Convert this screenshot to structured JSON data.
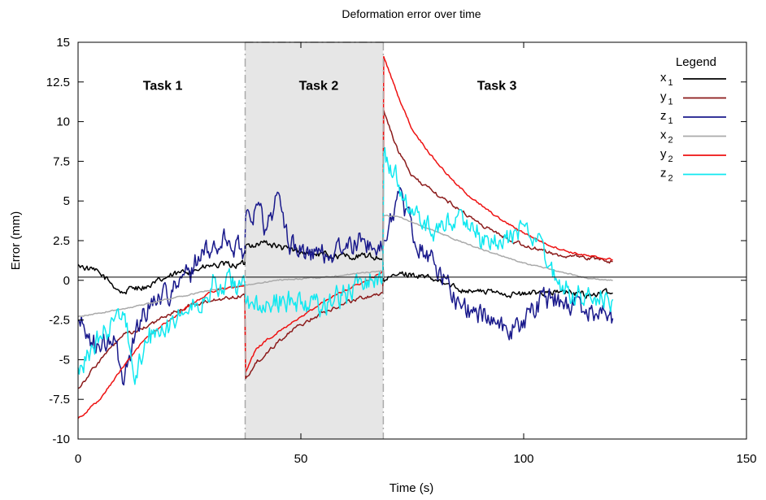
{
  "chart_data": {
    "type": "line",
    "title": "Deformation error over time",
    "xlabel": "Time (s)",
    "ylabel": "Error (mm)",
    "xlim": [
      0,
      150
    ],
    "ylim": [
      -10,
      15
    ],
    "xticks": [
      0,
      50,
      100,
      150
    ],
    "xtick_labels": [
      "0",
      "50",
      "100",
      "150"
    ],
    "yticks": [
      -10,
      -7.5,
      -5,
      -2.5,
      0,
      2.5,
      5,
      7.5,
      10,
      12.5,
      15
    ],
    "ytick_labels": [
      "-10",
      "-7.5",
      "-5",
      "-2.5",
      "0",
      "2.5",
      "5",
      "7.5",
      "10",
      "12.5",
      "15"
    ],
    "grid": false,
    "zero_line": 0.2,
    "shaded_region": [
      37.5,
      68.5
    ],
    "shaded_color": "#e6e6e6",
    "task_labels": [
      {
        "text": "Task 1",
        "x": 19,
        "y": 12.3
      },
      {
        "text": "Task 2",
        "x": 54,
        "y": 12.3
      },
      {
        "text": "Task 3",
        "x": 94,
        "y": 12.3
      }
    ],
    "legend": {
      "title": "Legend",
      "placement": "top-right"
    },
    "series": [
      {
        "name": "x1",
        "base": "x",
        "sub": "1",
        "color": "#000000",
        "noise": 0.25,
        "points": [
          [
            0,
            1.0
          ],
          [
            5,
            0.4
          ],
          [
            10,
            -0.8
          ],
          [
            13,
            -0.4
          ],
          [
            16,
            -0.4
          ],
          [
            20,
            0.2
          ],
          [
            25,
            0.6
          ],
          [
            30,
            0.9
          ],
          [
            37.4,
            1.0
          ],
          [
            37.6,
            2.2
          ],
          [
            42,
            2.4
          ],
          [
            46,
            2.0
          ],
          [
            50,
            1.8
          ],
          [
            55,
            1.6
          ],
          [
            60,
            1.5
          ],
          [
            65,
            1.5
          ],
          [
            68.4,
            1.4
          ],
          [
            68.6,
            -0.1
          ],
          [
            72,
            0.4
          ],
          [
            75,
            0.4
          ],
          [
            80,
            0
          ],
          [
            85,
            -0.5
          ],
          [
            90,
            -0.7
          ],
          [
            95,
            -0.8
          ],
          [
            100,
            -0.9
          ],
          [
            105,
            -0.7
          ],
          [
            110,
            -0.8
          ],
          [
            115,
            -0.9
          ],
          [
            120,
            -0.8
          ]
        ]
      },
      {
        "name": "y1",
        "base": "y",
        "sub": "1",
        "color": "#8b1a1a",
        "noise": 0.15,
        "points": [
          [
            0,
            -6.8
          ],
          [
            5,
            -5
          ],
          [
            10,
            -3.5
          ],
          [
            15,
            -3
          ],
          [
            20,
            -2.2
          ],
          [
            25,
            -1.6
          ],
          [
            30,
            -1.3
          ],
          [
            37.4,
            -0.9
          ],
          [
            37.6,
            -6.2
          ],
          [
            40,
            -5.2
          ],
          [
            45,
            -3.8
          ],
          [
            50,
            -2.8
          ],
          [
            55,
            -2
          ],
          [
            60,
            -1.4
          ],
          [
            65,
            -1
          ],
          [
            68.4,
            -0.8
          ],
          [
            68.6,
            10.7
          ],
          [
            72,
            8
          ],
          [
            75,
            6.6
          ],
          [
            80,
            5.5
          ],
          [
            85,
            4.6
          ],
          [
            90,
            3.6
          ],
          [
            95,
            2.8
          ],
          [
            100,
            2.2
          ],
          [
            105,
            1.8
          ],
          [
            110,
            1.5
          ],
          [
            115,
            1.4
          ],
          [
            120,
            1.2
          ]
        ]
      },
      {
        "name": "z1",
        "base": "z",
        "sub": "1",
        "color": "#1a1a8c",
        "noise": 0.9,
        "points": [
          [
            0,
            -2.5
          ],
          [
            5,
            -4.5
          ],
          [
            8,
            -3.5
          ],
          [
            10,
            -6.5
          ],
          [
            13,
            -3
          ],
          [
            17,
            -1
          ],
          [
            22,
            -0.5
          ],
          [
            25,
            0.5
          ],
          [
            27,
            1.5
          ],
          [
            30,
            1.8
          ],
          [
            33,
            2.6
          ],
          [
            37.4,
            1.8
          ],
          [
            37.6,
            4
          ],
          [
            40,
            4.8
          ],
          [
            42,
            3.2
          ],
          [
            45,
            5.5
          ],
          [
            47,
            2.5
          ],
          [
            50,
            1.8
          ],
          [
            55,
            1.6
          ],
          [
            60,
            2
          ],
          [
            65,
            2.5
          ],
          [
            68.4,
            1.8
          ],
          [
            68.6,
            2.5
          ],
          [
            72,
            5.5
          ],
          [
            75,
            3
          ],
          [
            80,
            1
          ],
          [
            85,
            -1.2
          ],
          [
            88,
            -2
          ],
          [
            92,
            -2.2
          ],
          [
            97,
            -3.2
          ],
          [
            100,
            -2.5
          ],
          [
            105,
            -1
          ],
          [
            110,
            -1.5
          ],
          [
            115,
            -1.8
          ],
          [
            120,
            -2.4
          ]
        ]
      },
      {
        "name": "x2",
        "base": "x",
        "sub": "2",
        "color": "#aaaaaa",
        "noise": 0.05,
        "points": [
          [
            0,
            -2.3
          ],
          [
            10,
            -1.8
          ],
          [
            20,
            -1.2
          ],
          [
            30,
            -0.6
          ],
          [
            37.4,
            -0.3
          ],
          [
            45,
            0
          ],
          [
            55,
            0.2
          ],
          [
            68.4,
            0.6
          ],
          [
            68.6,
            4.1
          ],
          [
            72,
            4
          ],
          [
            80,
            3.1
          ],
          [
            90,
            2
          ],
          [
            100,
            1.1
          ],
          [
            110,
            0.4
          ],
          [
            115,
            0.1
          ],
          [
            120,
            0
          ]
        ]
      },
      {
        "name": "y2",
        "base": "y",
        "sub": "2",
        "color": "#ee1111",
        "noise": 0.08,
        "points": [
          [
            0,
            -8.7
          ],
          [
            5,
            -7.5
          ],
          [
            10,
            -5.5
          ],
          [
            15,
            -3.7
          ],
          [
            20,
            -2.6
          ],
          [
            25,
            -1.6
          ],
          [
            30,
            -0.7
          ],
          [
            37.4,
            -0.3
          ],
          [
            37.6,
            -5.8
          ],
          [
            40,
            -4.3
          ],
          [
            45,
            -3.2
          ],
          [
            50,
            -2.3
          ],
          [
            55,
            -1.4
          ],
          [
            60,
            -0.6
          ],
          [
            65,
            0
          ],
          [
            68.4,
            0.5
          ],
          [
            68.6,
            14.1
          ],
          [
            72,
            11.5
          ],
          [
            75,
            9.5
          ],
          [
            80,
            7.6
          ],
          [
            85,
            6
          ],
          [
            90,
            4.8
          ],
          [
            95,
            3.8
          ],
          [
            100,
            3
          ],
          [
            105,
            2.3
          ],
          [
            110,
            1.8
          ],
          [
            115,
            1.5
          ],
          [
            120,
            1.3
          ]
        ]
      },
      {
        "name": "z2",
        "base": "z",
        "sub": "2",
        "color": "#11e8f0",
        "noise": 0.9,
        "points": [
          [
            0,
            -5.5
          ],
          [
            5,
            -3.5
          ],
          [
            10,
            -2
          ],
          [
            13,
            -6
          ],
          [
            16,
            -3
          ],
          [
            20,
            -2.5
          ],
          [
            25,
            -1.8
          ],
          [
            30,
            -0.5
          ],
          [
            37.4,
            -0.2
          ],
          [
            37.6,
            -1.5
          ],
          [
            42,
            -2
          ],
          [
            46,
            -1
          ],
          [
            50,
            -1.5
          ],
          [
            55,
            -1.5
          ],
          [
            60,
            -0.8
          ],
          [
            65,
            0
          ],
          [
            68.4,
            0.5
          ],
          [
            68.6,
            8
          ],
          [
            72,
            6
          ],
          [
            75,
            4.5
          ],
          [
            80,
            3
          ],
          [
            85,
            4
          ],
          [
            90,
            3
          ],
          [
            95,
            2.2
          ],
          [
            100,
            3.5
          ],
          [
            103,
            2.5
          ],
          [
            107,
            0
          ],
          [
            112,
            -1
          ],
          [
            117,
            -1.5
          ],
          [
            120,
            -1.2
          ]
        ]
      }
    ]
  }
}
